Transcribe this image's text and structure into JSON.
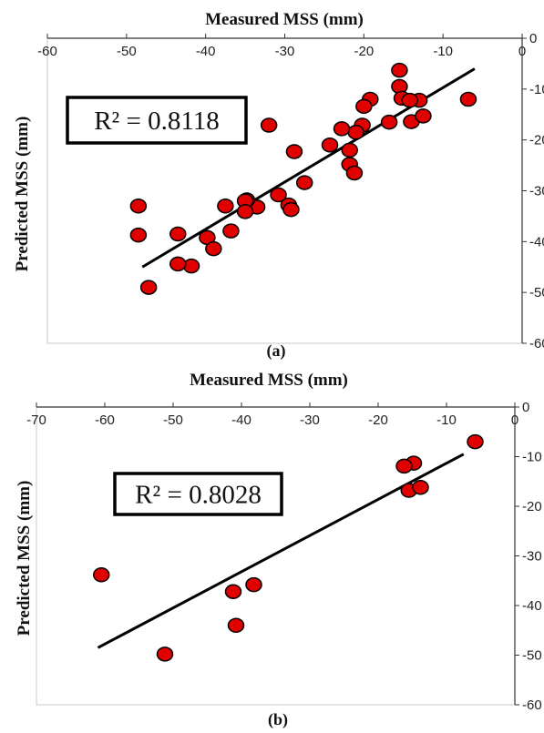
{
  "chart_data": [
    {
      "type": "scatter",
      "title": "Measured MSS (mm)",
      "ylabel": "Predicted  MSS (mm)",
      "caption": "(a)",
      "annotation": "R² = 0.8118",
      "xlim": [
        -60,
        0
      ],
      "ylim": [
        -60,
        0
      ],
      "xticks": [
        -60,
        -50,
        -40,
        -30,
        -20,
        -10,
        0
      ],
      "yticks": [
        0,
        -10,
        -20,
        -30,
        -40,
        -50,
        -60
      ],
      "x_axis_position": "top",
      "y_axis_position": "right",
      "grid": false,
      "marker_color": "#e00000",
      "trendline": {
        "x": [
          -48,
          -6
        ],
        "y": [
          -45,
          -6
        ]
      },
      "x": [
        -15.5,
        -15.5,
        -15.2,
        -13,
        -14.2,
        -19.2,
        -6.8,
        -20,
        -14,
        -16.8,
        -12.5,
        -32,
        -20.2,
        -21,
        -22.8,
        -24.3,
        -21.8,
        -21.8,
        -21.2,
        -28.8,
        -27.5,
        -30.8,
        -29.5,
        -29.2,
        -33.5,
        -34.8,
        -35,
        -37.5,
        -36.8,
        -35,
        -39.8,
        -39,
        -43.5,
        -41.8,
        -43.5,
        -48.5,
        -48.5,
        -47.2
      ],
      "y": [
        -6.3,
        -9.5,
        -11.8,
        -12.2,
        -12.2,
        -12,
        -12,
        -13.4,
        -16.4,
        -16.5,
        -15.3,
        -17.1,
        -17.1,
        -18.5,
        -17.8,
        -21,
        -22,
        -24.8,
        -26.5,
        -22.3,
        -28.4,
        -30.8,
        -32.8,
        -33.7,
        -33.2,
        -31.8,
        -32,
        -33,
        -37.9,
        -34.1,
        -39.2,
        -41.4,
        -38.5,
        -44.8,
        -44.4,
        -33,
        -38.7,
        -49
      ]
    },
    {
      "type": "scatter",
      "title": "Measured MSS (mm)",
      "ylabel": "Predicted  MSS (mm)",
      "caption": "(b)",
      "annotation": "R² = 0.8028",
      "xlim": [
        -70,
        0
      ],
      "ylim": [
        -60,
        0
      ],
      "xticks": [
        -70,
        -60,
        -50,
        -40,
        -30,
        -20,
        -10,
        0
      ],
      "yticks": [
        0,
        -10,
        -20,
        -30,
        -40,
        -50,
        -60
      ],
      "x_axis_position": "top",
      "y_axis_position": "right",
      "grid": false,
      "marker_color": "#e00000",
      "trendline": {
        "x": [
          -61,
          -7.5
        ],
        "y": [
          -48.5,
          -9.5
        ]
      },
      "x": [
        -5.8,
        -14.8,
        -16.2,
        -15.5,
        -13.8,
        -60.5,
        -51.2,
        -41.2,
        -38.2,
        -40.8
      ],
      "y": [
        -7,
        -11.3,
        -11.9,
        -16.8,
        -16.2,
        -33.8,
        -49.8,
        -37.2,
        -35.8,
        -44
      ]
    }
  ]
}
